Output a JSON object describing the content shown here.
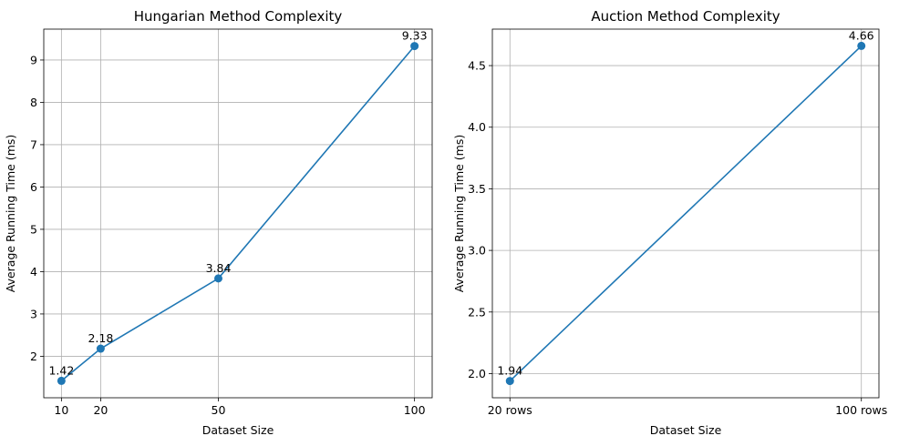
{
  "chart_data": [
    {
      "type": "line",
      "title": "Hungarian Method Complexity",
      "xlabel": "Dataset Size",
      "ylabel": "Average Running Time (ms)",
      "x": [
        10,
        20,
        50,
        100
      ],
      "x_tick_labels": [
        "10",
        "20",
        "50",
        "100"
      ],
      "values": [
        1.42,
        2.18,
        3.84,
        9.33
      ],
      "data_labels": [
        "1.42",
        "2.18",
        "3.84",
        "9.33"
      ],
      "xlim": [
        5.5,
        104.5
      ],
      "ylim": [
        1.02,
        9.73
      ],
      "y_ticks": [
        2,
        3,
        4,
        5,
        6,
        7,
        8,
        9
      ],
      "grid": true,
      "color": "#1f77b4"
    },
    {
      "type": "line",
      "title": "Auction Method Complexity",
      "xlabel": "Dataset Size",
      "ylabel": "Average Running Time (ms)",
      "x": [
        0,
        1
      ],
      "x_tick_labels": [
        "20 rows",
        "100 rows"
      ],
      "values": [
        1.94,
        4.66
      ],
      "data_labels": [
        "1.94",
        "4.66"
      ],
      "xlim": [
        -0.05,
        1.05
      ],
      "ylim": [
        1.804,
        4.796
      ],
      "y_ticks": [
        2.0,
        2.5,
        3.0,
        3.5,
        4.0,
        4.5
      ],
      "y_tick_labels": [
        "2.0",
        "2.5",
        "3.0",
        "3.5",
        "4.0",
        "4.5"
      ],
      "grid": true,
      "color": "#1f77b4"
    }
  ]
}
